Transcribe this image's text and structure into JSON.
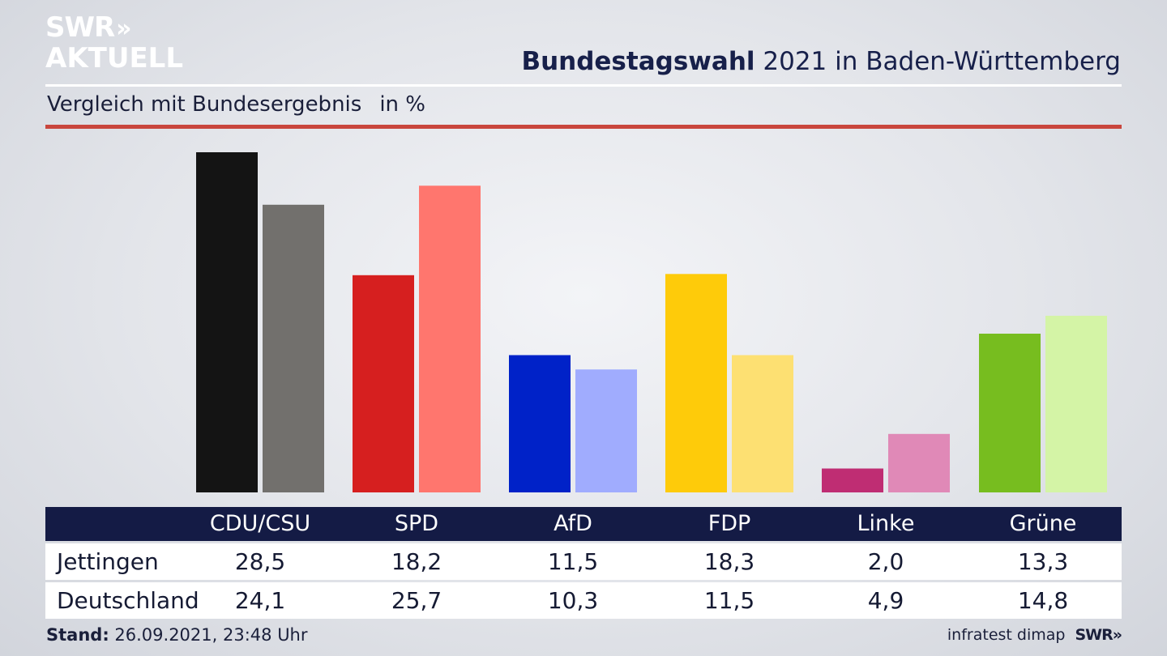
{
  "brand": {
    "line1": "SWR",
    "line2": "AKTUELL",
    "chevrons": "»"
  },
  "header": {
    "title_bold": "Bundestagswahl",
    "title_rest": "2021 in Baden-Württemberg",
    "subtitle": "Vergleich mit Bundesergebnis",
    "unit": "in %"
  },
  "chart_data": {
    "type": "bar",
    "categories": [
      "CDU/CSU",
      "SPD",
      "AfD",
      "FDP",
      "Linke",
      "Grüne"
    ],
    "series": [
      {
        "name": "Jettingen",
        "values": [
          28.5,
          18.2,
          11.5,
          18.3,
          2.0,
          13.3
        ],
        "colors": [
          "#141414",
          "#d61f1f",
          "#0022c8",
          "#fecb0a",
          "#bf2d73",
          "#77bd1f"
        ]
      },
      {
        "name": "Deutschland",
        "values": [
          24.1,
          25.7,
          10.3,
          11.5,
          4.9,
          14.8
        ],
        "colors": [
          "#72706d",
          "#ff766e",
          "#a0acfe",
          "#fde072",
          "#e089b7",
          "#d4f4a6"
        ]
      }
    ],
    "ylim": [
      0,
      28.5
    ],
    "grid": false,
    "legend": "table-below"
  },
  "table": {
    "headers": [
      "CDU/CSU",
      "SPD",
      "AfD",
      "FDP",
      "Linke",
      "Grüne"
    ],
    "rows": [
      {
        "label": "Jettingen",
        "values": [
          "28,5",
          "18,2",
          "11,5",
          "18,3",
          "2,0",
          "13,3"
        ]
      },
      {
        "label": "Deutschland",
        "values": [
          "24,1",
          "25,7",
          "10,3",
          "11,5",
          "4,9",
          "14,8"
        ]
      }
    ]
  },
  "footer": {
    "stand_label": "Stand:",
    "stand_value": "26.09.2021, 23:48 Uhr",
    "source": "infratest dimap",
    "brand": "SWR»"
  },
  "colors": {
    "header_bg": "#141b45",
    "accent_rule": "#c9463d"
  }
}
